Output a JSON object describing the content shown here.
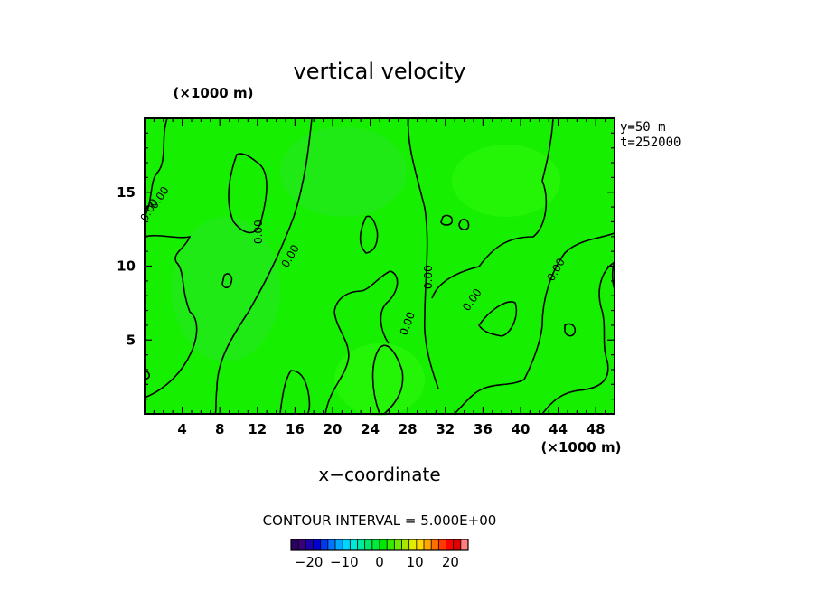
{
  "chart_data": {
    "type": "heatmap",
    "title": "vertical velocity",
    "xlabel": "x−coordinate",
    "ylabel": "",
    "x_units": "(×1000 m)",
    "y_units": "(×1000 m)",
    "xlim": [
      0,
      50
    ],
    "ylim": [
      0,
      20
    ],
    "x_ticks": [
      4,
      8,
      12,
      16,
      20,
      24,
      28,
      32,
      36,
      40,
      44,
      48
    ],
    "y_ticks": [
      5,
      10,
      15
    ],
    "info": [
      "y=50  m",
      "t=252000"
    ],
    "contour_interval_label": "CONTOUR INTERVAL = 5.000E+00",
    "contour_labels": [
      "0.00",
      "0.00",
      "0.00",
      "0.00",
      "0.00",
      "0.00",
      "0.00",
      "0.00"
    ],
    "colorbar": {
      "ticks": [
        -20,
        -10,
        0,
        10,
        20
      ],
      "range": [
        -25,
        25
      ],
      "colors": [
        "#2a0060",
        "#3a007a",
        "#1c00a8",
        "#0000d0",
        "#0038f0",
        "#0074ff",
        "#00a8ff",
        "#00d4ff",
        "#00e8d8",
        "#00e8a0",
        "#00e868",
        "#00e838",
        "#00e800",
        "#38e800",
        "#6ee800",
        "#a8e800",
        "#e0ec00",
        "#ffd800",
        "#ffa800",
        "#ff7000",
        "#ff3800",
        "#ff0000",
        "#e00000",
        "#ff8080"
      ]
    },
    "field_fill_color": "#16f000",
    "grid": false
  }
}
